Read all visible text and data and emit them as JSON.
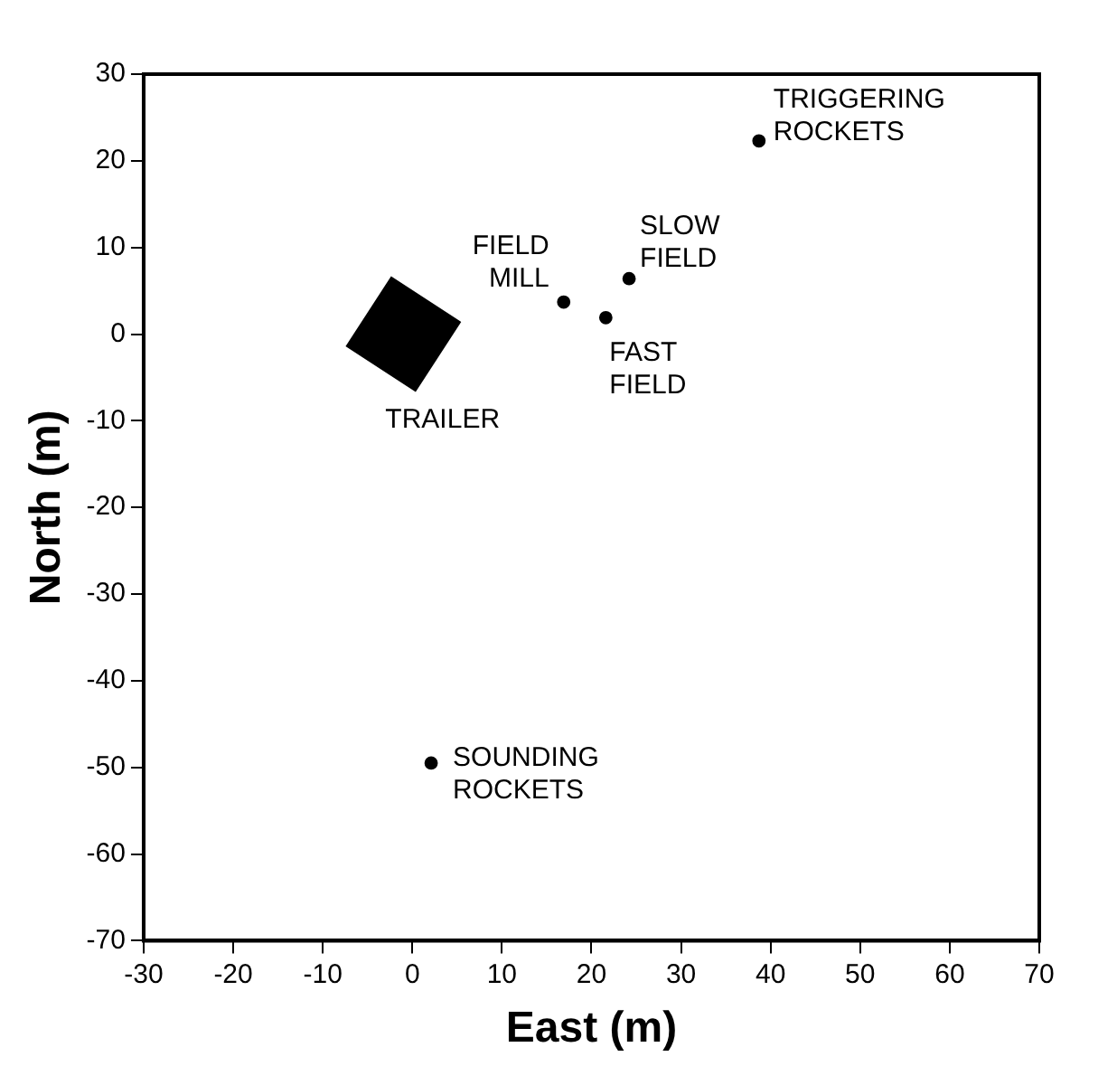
{
  "chart_data": {
    "type": "scatter",
    "xlabel": "East (m)",
    "ylabel": "North (m)",
    "xlim": [
      -30,
      70
    ],
    "xticks": [
      -30,
      -20,
      -10,
      0,
      10,
      20,
      30,
      40,
      50,
      60,
      70
    ],
    "ylim": [
      -70,
      30
    ],
    "yticks": [
      -70,
      -60,
      -50,
      -40,
      -30,
      -20,
      -10,
      0,
      10,
      20,
      30
    ],
    "grid": false,
    "marker": "circle",
    "series": [
      {
        "color": "#000000",
        "x": [
          38.7,
          16.9,
          24.2,
          21.6,
          2.1
        ],
        "values": [
          22.3,
          3.7,
          6.4,
          1.9,
          -49.5
        ]
      },
      {
        "color": "#000000",
        "marker": "diamond",
        "x": [
          -1
        ],
        "values": [
          0
        ]
      }
    ],
    "annotations": [
      {
        "text": "TRIGGERING ROCKETS",
        "x": 38.7,
        "y": 22.3
      },
      {
        "text": "FIELD MILL",
        "x": 16.9,
        "y": 3.7
      },
      {
        "text": "SLOW FIELD",
        "x": 24.2,
        "y": 6.4
      },
      {
        "text": "FAST FIELD",
        "x": 21.6,
        "y": 1.9
      },
      {
        "text": "SOUNDING ROCKETS",
        "x": 2.1,
        "y": -49.5
      },
      {
        "text": "TRAILER",
        "x": -1,
        "y": 0
      }
    ]
  }
}
